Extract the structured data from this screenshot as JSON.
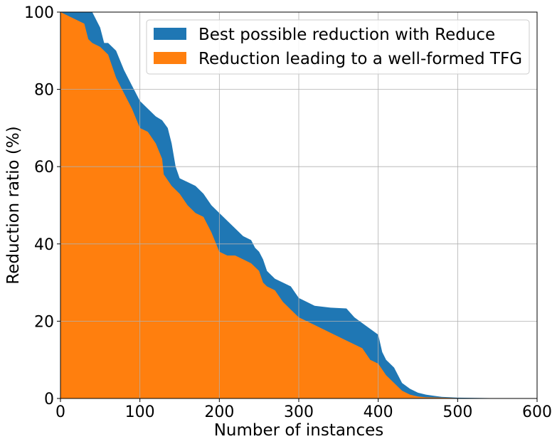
{
  "chart_data": {
    "type": "area",
    "title": "",
    "xlabel": "Number of instances",
    "ylabel": "Reduction ratio (%)",
    "xlim": [
      0,
      600
    ],
    "ylim": [
      0,
      100
    ],
    "x_ticks": [
      0,
      100,
      200,
      300,
      400,
      500,
      600
    ],
    "y_ticks": [
      0,
      20,
      40,
      60,
      80,
      100
    ],
    "x_tick_labels": [
      "0",
      "100",
      "200",
      "300",
      "400",
      "500",
      "600"
    ],
    "y_tick_labels": [
      "0",
      "20",
      "40",
      "60",
      "80",
      "100"
    ],
    "grid": true,
    "legend_position": "top-right",
    "series": [
      {
        "name": "Best possible reduction with Reduce",
        "color": "#1f77b4",
        "points": [
          [
            0,
            100
          ],
          [
            30,
            100
          ],
          [
            40,
            100
          ],
          [
            50,
            96
          ],
          [
            55,
            92
          ],
          [
            60,
            92
          ],
          [
            70,
            90
          ],
          [
            80,
            85
          ],
          [
            90,
            81
          ],
          [
            100,
            77
          ],
          [
            110,
            75
          ],
          [
            120,
            73
          ],
          [
            128,
            72
          ],
          [
            135,
            70
          ],
          [
            140,
            66
          ],
          [
            145,
            60
          ],
          [
            150,
            57
          ],
          [
            160,
            56
          ],
          [
            170,
            55
          ],
          [
            180,
            53
          ],
          [
            190,
            50
          ],
          [
            200,
            48
          ],
          [
            210,
            46
          ],
          [
            220,
            44
          ],
          [
            230,
            42
          ],
          [
            240,
            41
          ],
          [
            245,
            39
          ],
          [
            250,
            38
          ],
          [
            255,
            36
          ],
          [
            260,
            33
          ],
          [
            270,
            31
          ],
          [
            280,
            30
          ],
          [
            290,
            29
          ],
          [
            300,
            26
          ],
          [
            310,
            25
          ],
          [
            320,
            24
          ],
          [
            340,
            23.5
          ],
          [
            360,
            23.3
          ],
          [
            370,
            21
          ],
          [
            380,
            19.5
          ],
          [
            390,
            18
          ],
          [
            400,
            16.5
          ],
          [
            405,
            12
          ],
          [
            410,
            10
          ],
          [
            420,
            8
          ],
          [
            430,
            4
          ],
          [
            440,
            2.5
          ],
          [
            450,
            1.5
          ],
          [
            460,
            1
          ],
          [
            470,
            0.7
          ],
          [
            480,
            0.4
          ],
          [
            500,
            0.2
          ],
          [
            540,
            0.1
          ],
          [
            583,
            0.1
          ]
        ]
      },
      {
        "name": "Reduction leading to a well-formed TFG",
        "color": "#ff7f0e",
        "points": [
          [
            0,
            100
          ],
          [
            30,
            97
          ],
          [
            35,
            93
          ],
          [
            40,
            92
          ],
          [
            50,
            91
          ],
          [
            60,
            89
          ],
          [
            65,
            86
          ],
          [
            70,
            83
          ],
          [
            80,
            79
          ],
          [
            90,
            75
          ],
          [
            100,
            70
          ],
          [
            110,
            69
          ],
          [
            120,
            66
          ],
          [
            128,
            62
          ],
          [
            130,
            58
          ],
          [
            140,
            55
          ],
          [
            150,
            53
          ],
          [
            160,
            50
          ],
          [
            170,
            48
          ],
          [
            180,
            47
          ],
          [
            190,
            43
          ],
          [
            200,
            38
          ],
          [
            210,
            37
          ],
          [
            220,
            37
          ],
          [
            230,
            36
          ],
          [
            240,
            35
          ],
          [
            250,
            33
          ],
          [
            255,
            30
          ],
          [
            260,
            29
          ],
          [
            270,
            28
          ],
          [
            280,
            25
          ],
          [
            290,
            23
          ],
          [
            300,
            21
          ],
          [
            310,
            20
          ],
          [
            320,
            19
          ],
          [
            330,
            18
          ],
          [
            340,
            17
          ],
          [
            350,
            16
          ],
          [
            360,
            15
          ],
          [
            370,
            14
          ],
          [
            380,
            13
          ],
          [
            390,
            10
          ],
          [
            400,
            9
          ],
          [
            410,
            6
          ],
          [
            420,
            4
          ],
          [
            430,
            2
          ],
          [
            440,
            1
          ],
          [
            450,
            0.5
          ],
          [
            460,
            0.3
          ],
          [
            480,
            0.2
          ],
          [
            500,
            0.1
          ],
          [
            583,
            0.05
          ]
        ]
      }
    ]
  }
}
